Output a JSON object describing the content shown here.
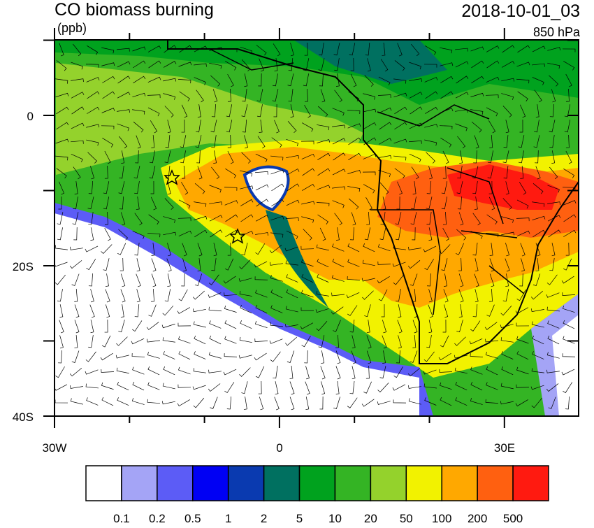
{
  "header": {
    "title": "CO biomass burning",
    "units": "(ppb)",
    "time": "2018-10-01_03",
    "level": "850 hPa"
  },
  "map": {
    "lat_labels": [
      "0",
      "20S",
      "40S"
    ],
    "lon_labels": [
      "30W",
      "0",
      "30E"
    ]
  },
  "colorbar": {
    "colors": [
      "#ffffff",
      "#a4a4f6",
      "#5c5cf6",
      "#0000f4",
      "#0a3ab0",
      "#007060",
      "#00a21e",
      "#34b424",
      "#94d22c",
      "#f2f200",
      "#ffa800",
      "#ff6010",
      "#ff1a10"
    ],
    "labels": [
      "0.1",
      "0.2",
      "0.5",
      "1",
      "2",
      "5",
      "10",
      "20",
      "50",
      "100",
      "200",
      "500"
    ]
  }
}
